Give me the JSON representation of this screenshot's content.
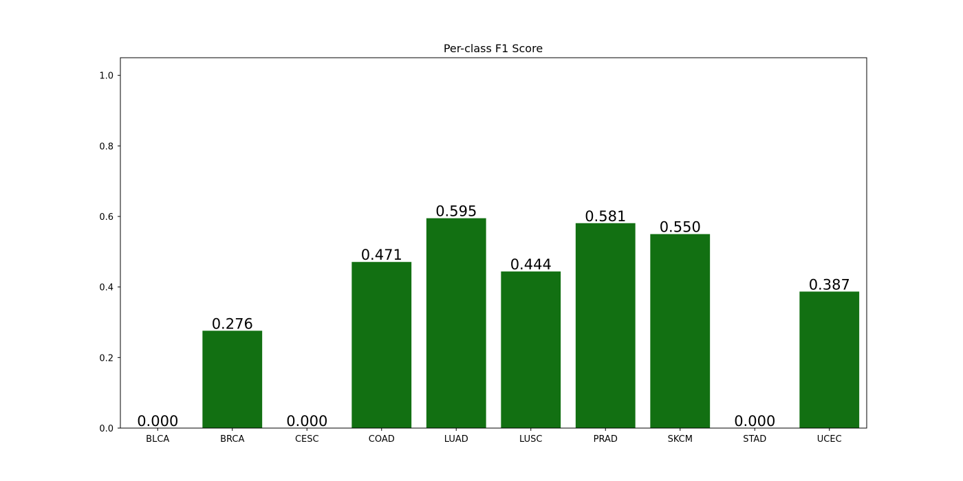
{
  "chart_data": {
    "type": "bar",
    "title": "Per-class F1 Score",
    "xlabel": "",
    "ylabel": "",
    "categories": [
      "BLCA",
      "BRCA",
      "CESC",
      "COAD",
      "LUAD",
      "LUSC",
      "PRAD",
      "SKCM",
      "STAD",
      "UCEC"
    ],
    "values": [
      0.0,
      0.276,
      0.0,
      0.471,
      0.595,
      0.444,
      0.581,
      0.55,
      0.0,
      0.387
    ],
    "value_labels": [
      "0.000",
      "0.276",
      "0.000",
      "0.471",
      "0.595",
      "0.444",
      "0.581",
      "0.550",
      "0.000",
      "0.387"
    ],
    "ylim": [
      0,
      1.05
    ],
    "yticks": [
      0.0,
      0.2,
      0.4,
      0.6,
      0.8,
      1.0
    ],
    "ytick_labels": [
      "0.0",
      "0.2",
      "0.4",
      "0.6",
      "0.8",
      "1.0"
    ],
    "grid": false,
    "legend": "none",
    "bar_color": "#127012"
  }
}
